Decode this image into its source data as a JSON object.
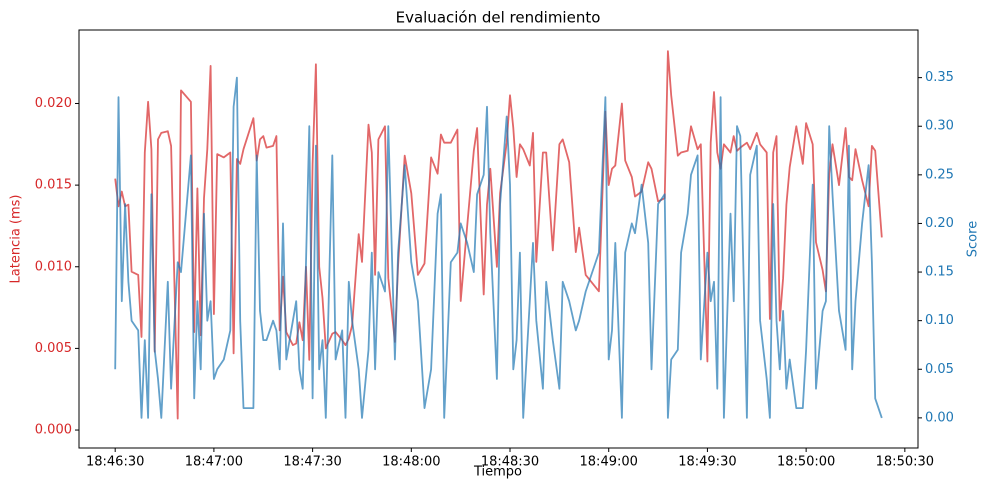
{
  "chart_data": {
    "type": "line",
    "title": "Evaluación del rendimiento",
    "xlabel": "Tiempo",
    "ylabel": "Latencia (ms)",
    "y2label": "Score",
    "xlim": [
      "18:46:19",
      "18:50:34"
    ],
    "xticks": [
      "18:46:30",
      "18:47:00",
      "18:47:30",
      "18:48:00",
      "18:48:30",
      "18:49:00",
      "18:49:30",
      "18:50:00",
      "18:50:30"
    ],
    "ylim": [
      -0.0011,
      0.0245
    ],
    "yticks": [
      {
        "value": 0,
        "label": "0.000"
      },
      {
        "value": 0.005,
        "label": "0.005"
      },
      {
        "value": 0.01,
        "label": "0.010"
      },
      {
        "value": 0.015,
        "label": "0.015"
      },
      {
        "value": 0.02,
        "label": "0.020"
      }
    ],
    "y2lim": [
      -0.031,
      0.399
    ],
    "y2ticks": [
      {
        "value": 0,
        "label": "0.00"
      },
      {
        "value": 0.05,
        "label": "0.05"
      },
      {
        "value": 0.1,
        "label": "0.10"
      },
      {
        "value": 0.15,
        "label": "0.15"
      },
      {
        "value": 0.2,
        "label": "0.20"
      },
      {
        "value": 0.25,
        "label": "0.25"
      },
      {
        "value": 0.3,
        "label": "0.30"
      },
      {
        "value": 0.35,
        "label": "0.35"
      }
    ],
    "x": [
      "18:46:30",
      "18:46:31",
      "18:46:32",
      "18:46:33",
      "18:46:34",
      "18:46:35",
      "18:46:37",
      "18:46:38",
      "18:46:39",
      "18:46:40",
      "18:46:41",
      "18:46:42",
      "18:46:43",
      "18:46:44",
      "18:46:46",
      "18:46:47",
      "18:46:49",
      "18:46:50",
      "18:46:53",
      "18:46:54",
      "18:46:55",
      "18:46:56",
      "18:46:57",
      "18:46:58",
      "18:46:59",
      "18:47:00",
      "18:47:01",
      "18:47:03",
      "18:47:05",
      "18:47:06",
      "18:47:07",
      "18:47:08",
      "18:47:09",
      "18:47:12",
      "18:47:13",
      "18:47:14",
      "18:47:15",
      "18:47:16",
      "18:47:18",
      "18:47:19",
      "18:47:20",
      "18:47:21",
      "18:47:22",
      "18:47:24",
      "18:47:25",
      "18:47:26",
      "18:47:27",
      "18:47:28",
      "18:47:29",
      "18:47:30",
      "18:47:31",
      "18:47:32",
      "18:47:33",
      "18:47:34",
      "18:47:36",
      "18:47:37",
      "18:47:39",
      "18:47:40",
      "18:47:41",
      "18:47:42",
      "18:47:44",
      "18:47:45",
      "18:47:47",
      "18:47:48",
      "18:47:49",
      "18:47:50",
      "18:47:52",
      "18:47:53",
      "18:47:55",
      "18:47:56",
      "18:47:58",
      "18:48:00",
      "18:48:02",
      "18:48:04",
      "18:48:06",
      "18:48:08",
      "18:48:09",
      "18:48:10",
      "18:48:12",
      "18:48:14",
      "18:48:15",
      "18:48:17",
      "18:48:19",
      "18:48:20",
      "18:48:22",
      "18:48:23",
      "18:48:24",
      "18:48:26",
      "18:48:27",
      "18:48:29",
      "18:48:30",
      "18:48:31",
      "18:48:32",
      "18:48:33",
      "18:48:34",
      "18:48:36",
      "18:48:37",
      "18:48:38",
      "18:48:40",
      "18:48:41",
      "18:48:43",
      "18:48:45",
      "18:48:46",
      "18:48:48",
      "18:48:50",
      "18:48:51",
      "18:48:53",
      "18:48:57",
      "18:48:59",
      "18:49:00",
      "18:49:01",
      "18:49:02",
      "18:49:04",
      "18:49:05",
      "18:49:07",
      "18:49:08",
      "18:49:10",
      "18:49:12",
      "18:49:13",
      "18:49:15",
      "18:49:17",
      "18:49:18",
      "18:49:19",
      "18:49:21",
      "18:49:22",
      "18:49:24",
      "18:49:25",
      "18:49:27",
      "18:49:28",
      "18:49:30",
      "18:49:31",
      "18:49:32",
      "18:49:33",
      "18:49:34",
      "18:49:35",
      "18:49:37",
      "18:49:38",
      "18:49:39",
      "18:49:40",
      "18:49:42",
      "18:49:43",
      "18:49:45",
      "18:49:46",
      "18:49:48",
      "18:49:49",
      "18:49:50",
      "18:49:51",
      "18:49:52",
      "18:49:53",
      "18:49:54",
      "18:49:55",
      "18:49:57",
      "18:49:59",
      "18:50:00",
      "18:50:02",
      "18:50:03",
      "18:50:05",
      "18:50:06",
      "18:50:07",
      "18:50:08",
      "18:50:10",
      "18:50:12",
      "18:50:13",
      "18:50:14",
      "18:50:15",
      "18:50:17",
      "18:50:19",
      "18:50:20",
      "18:50:21",
      "18:50:23"
    ],
    "series": [
      {
        "name": "Latencia (ms)",
        "color": "#d62728",
        "values": [
          0.0154,
          0.0137,
          0.0146,
          0.0137,
          0.0138,
          0.0097,
          0.0095,
          0.0057,
          0.017,
          0.0201,
          0.0172,
          0.0048,
          0.0178,
          0.0182,
          0.0183,
          0.0174,
          0.0007,
          0.0208,
          0.0201,
          0.006,
          0.0148,
          0.0058,
          0.0142,
          0.0172,
          0.0223,
          0.0071,
          0.0169,
          0.0167,
          0.017,
          0.0047,
          0.0166,
          0.0163,
          0.0172,
          0.0191,
          0.0165,
          0.0178,
          0.018,
          0.0173,
          0.0174,
          0.018,
          0.0061,
          0.0094,
          0.006,
          0.0052,
          0.0053,
          0.0066,
          0.0055,
          0.01,
          0.0043,
          0.0163,
          0.0224,
          0.01,
          0.0081,
          0.005,
          0.0059,
          0.006,
          0.0055,
          0.0052,
          0.0056,
          0.0064,
          0.012,
          0.0103,
          0.0187,
          0.017,
          0.0095,
          0.0178,
          0.0186,
          0.0093,
          0.0054,
          0.0101,
          0.0168,
          0.0145,
          0.0095,
          0.0102,
          0.0167,
          0.0157,
          0.0181,
          0.0176,
          0.0176,
          0.0184,
          0.0079,
          0.0125,
          0.0171,
          0.0185,
          0.0083,
          0.0138,
          0.016,
          0.01,
          0.0145,
          0.0176,
          0.0205,
          0.0185,
          0.0155,
          0.0175,
          0.0172,
          0.0162,
          0.0182,
          0.0103,
          0.017,
          0.017,
          0.011,
          0.0175,
          0.0178,
          0.0164,
          0.0109,
          0.0124,
          0.0095,
          0.0085,
          0.0195,
          0.015,
          0.016,
          0.0162,
          0.02,
          0.0165,
          0.0155,
          0.0143,
          0.0146,
          0.0164,
          0.016,
          0.014,
          0.0142,
          0.0232,
          0.0205,
          0.0168,
          0.017,
          0.0171,
          0.0186,
          0.0172,
          0.0175,
          0.0042,
          0.0176,
          0.0207,
          0.017,
          0.016,
          0.0175,
          0.017,
          0.018,
          0.0171,
          0.0173,
          0.0176,
          0.0172,
          0.0182,
          0.0175,
          0.017,
          0.0068,
          0.017,
          0.018,
          0.0067,
          0.0093,
          0.0138,
          0.0161,
          0.0186,
          0.0163,
          0.0188,
          0.0175,
          0.0115,
          0.0098,
          0.0085,
          0.0157,
          0.0175,
          0.015,
          0.0185,
          0.0155,
          0.0153,
          0.0172,
          0.0153,
          0.0137,
          0.0174,
          0.0171,
          0.0118
        ]
      },
      {
        "name": "Score",
        "color": "#1f77b4",
        "axis": "y2",
        "values": [
          0.05,
          0.33,
          0.12,
          0.22,
          0.14,
          0.1,
          0.09,
          0,
          0.08,
          0,
          0.23,
          0.07,
          0.04,
          0,
          0.14,
          0.03,
          0.16,
          0.15,
          0.27,
          0.02,
          0.12,
          0.05,
          0.21,
          0.1,
          0.12,
          0.04,
          0.05,
          0.06,
          0.09,
          0.32,
          0.35,
          0.1,
          0.01,
          0.01,
          0.27,
          0.11,
          0.08,
          0.08,
          0.1,
          0.09,
          0.05,
          0.2,
          0.06,
          0.1,
          0.12,
          0.05,
          0.03,
          0.16,
          0.3,
          0.02,
          0.28,
          0.05,
          0.08,
          0,
          0.27,
          0.06,
          0.09,
          0,
          0.14,
          0.1,
          0.05,
          0,
          0.07,
          0.17,
          0.05,
          0.15,
          0.13,
          0.3,
          0.06,
          0.17,
          0.26,
          0.16,
          0.12,
          0.01,
          0.05,
          0.21,
          0.23,
          0,
          0.16,
          0.17,
          0.2,
          0.18,
          0.15,
          0.23,
          0.25,
          0.32,
          0.19,
          0.04,
          0.22,
          0.31,
          0.24,
          0.05,
          0.08,
          0.17,
          0,
          0.12,
          0.18,
          0.1,
          0.03,
          0.14,
          0.08,
          0.03,
          0.14,
          0.12,
          0.09,
          0.1,
          0.13,
          0.17,
          0.33,
          0.06,
          0.09,
          0.18,
          0,
          0.17,
          0.2,
          0.19,
          0.24,
          0.18,
          0.05,
          0.22,
          0.23,
          0,
          0.06,
          0.07,
          0.17,
          0.21,
          0.25,
          0.27,
          0.06,
          0.17,
          0.12,
          0.14,
          0.03,
          0.33,
          0,
          0.21,
          0.12,
          0.3,
          0.29,
          0,
          0.25,
          0.28,
          0.1,
          0.04,
          0,
          0.22,
          0.1,
          0.05,
          0.11,
          0.03,
          0.06,
          0.01,
          0.01,
          0.07,
          0.24,
          0.03,
          0.11,
          0.12,
          0.3,
          0.23,
          0.11,
          0.07,
          0.28,
          0.05,
          0.12,
          0.2,
          0.26,
          0.16,
          0.02,
          0
        ]
      }
    ]
  }
}
